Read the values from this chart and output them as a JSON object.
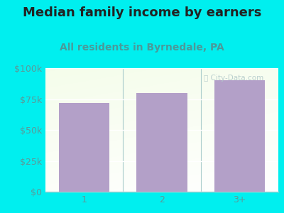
{
  "title": "Median family income by earners",
  "subtitle": "All residents in Byrnedale, PA",
  "categories": [
    "1",
    "2",
    "3+"
  ],
  "values": [
    72000,
    80000,
    90000
  ],
  "bar_color": "#b3a0c8",
  "background_color": "#00efef",
  "title_color": "#222222",
  "subtitle_color": "#4a9a9a",
  "axis_label_color": "#5a9a9a",
  "ylim": [
    0,
    100000
  ],
  "yticks": [
    0,
    25000,
    50000,
    75000,
    100000
  ],
  "ytick_labels": [
    "$0",
    "$25k",
    "$50k",
    "$75k",
    "$100k"
  ],
  "title_fontsize": 13,
  "subtitle_fontsize": 10,
  "tick_fontsize": 9
}
